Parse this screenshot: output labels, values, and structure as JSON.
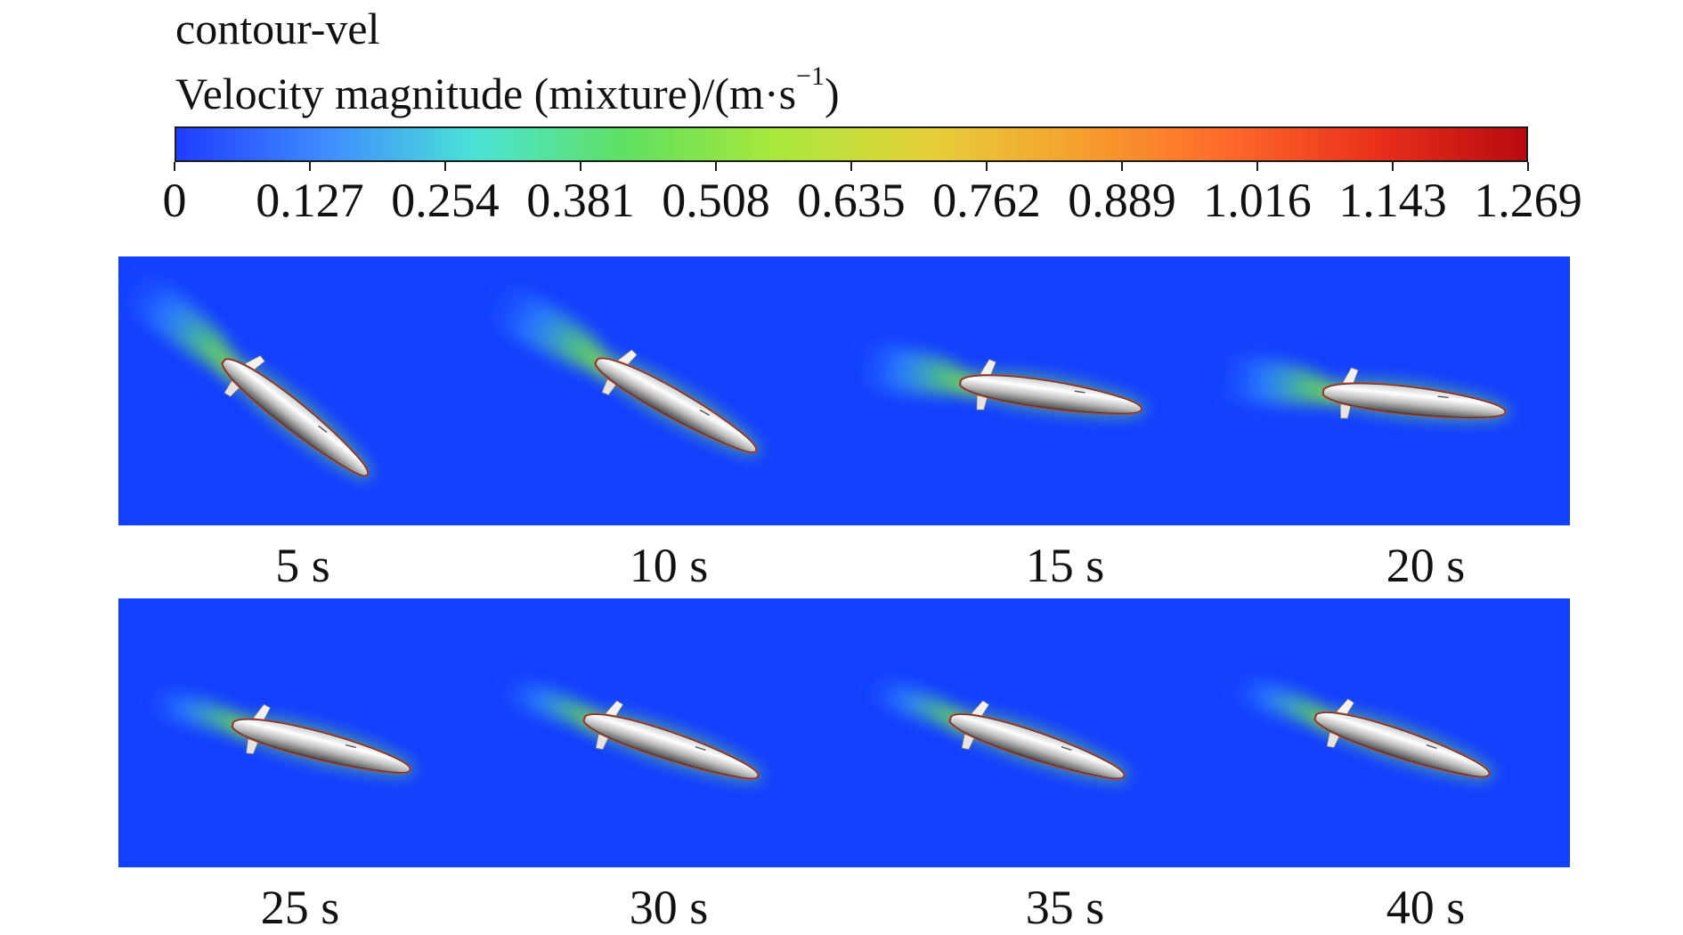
{
  "legend": {
    "title": "contour-vel",
    "variable": "Velocity magnitude (mixture)/(m·s",
    "unit_exponent": "−1",
    "unit_close": ")",
    "tick_labels": [
      "0",
      "0.127",
      "0.254",
      "0.381",
      "0.508",
      "0.635",
      "0.762",
      "0.889",
      "1.016",
      "1.143",
      "1.269"
    ],
    "range": [
      0,
      1.269
    ],
    "colormap": [
      "#1f3cff",
      "#3f8cff",
      "#4be3d6",
      "#5fe060",
      "#a8e83a",
      "#e6d03a",
      "#f5a02e",
      "#ff6a2a",
      "#e8301a",
      "#b80a10"
    ]
  },
  "background_color": "#1340ff",
  "panels": [
    {
      "label": "5 s",
      "pitch_deg": 38
    },
    {
      "label": "10 s",
      "pitch_deg": 29
    },
    {
      "label": "15 s",
      "pitch_deg": 8
    },
    {
      "label": "20 s",
      "pitch_deg": 6
    },
    {
      "label": "25 s",
      "pitch_deg": 14
    },
    {
      "label": "30 s",
      "pitch_deg": 18
    },
    {
      "label": "35 s",
      "pitch_deg": 18
    },
    {
      "label": "40 s",
      "pitch_deg": 18
    }
  ]
}
